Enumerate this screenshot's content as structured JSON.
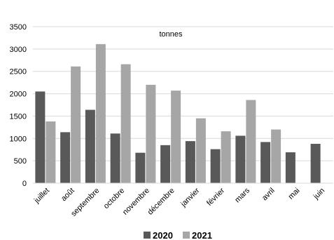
{
  "chart_data": {
    "type": "bar",
    "annotation": "tonnes",
    "categories": [
      "juillet",
      "août",
      "septembre",
      "octobre",
      "novembre",
      "décembre",
      "janvier",
      "février",
      "mars",
      "avril",
      "mai",
      "juin"
    ],
    "series": [
      {
        "name": "2020",
        "color": "#595959",
        "values": [
          2050,
          1140,
          1640,
          1110,
          680,
          850,
          940,
          760,
          1060,
          920,
          690,
          880
        ]
      },
      {
        "name": "2021",
        "color": "#a6a6a6",
        "values": [
          1380,
          2610,
          3110,
          2660,
          2200,
          2070,
          1450,
          1160,
          1860,
          1200,
          null,
          null
        ]
      }
    ],
    "ylim": [
      0,
      3500
    ],
    "yticks": [
      0,
      500,
      1000,
      1500,
      2000,
      2500,
      3000,
      3500
    ],
    "grid": true,
    "legend_position": "bottom"
  }
}
